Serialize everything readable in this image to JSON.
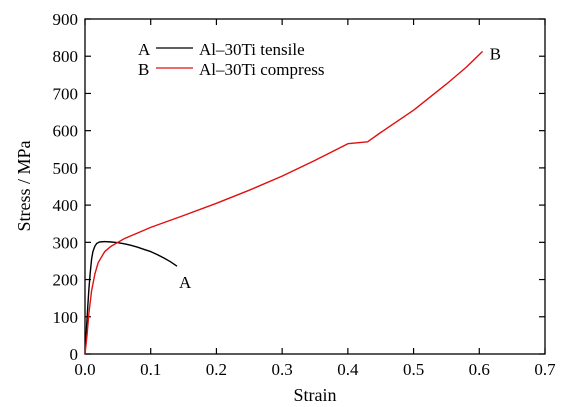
{
  "chart_data": {
    "type": "line",
    "title": "",
    "xlabel": "Strain",
    "ylabel": "Stress / MPa",
    "xlim": [
      0.0,
      0.7
    ],
    "ylim": [
      0,
      900
    ],
    "x_ticks": [
      0.0,
      0.1,
      0.2,
      0.3,
      0.4,
      0.5,
      0.6,
      0.7
    ],
    "x_tick_labels": [
      "0.0",
      "0.1",
      "0.2",
      "0.3",
      "0.4",
      "0.5",
      "0.6",
      "0.7"
    ],
    "y_ticks": [
      0,
      100,
      200,
      300,
      400,
      500,
      600,
      700,
      800,
      900
    ],
    "y_tick_labels": [
      "0",
      "100",
      "200",
      "300",
      "400",
      "500",
      "600",
      "700",
      "800",
      "900"
    ],
    "grid": false,
    "legend_position": "top-left",
    "series": [
      {
        "key": "A",
        "name": "Al–30Ti tensile",
        "end_label": "A",
        "color": "#000000",
        "x": [
          0.0,
          0.002,
          0.004,
          0.006,
          0.008,
          0.01,
          0.012,
          0.015,
          0.018,
          0.022,
          0.03,
          0.04,
          0.05,
          0.06,
          0.07,
          0.08,
          0.09,
          0.1,
          0.11,
          0.12,
          0.13,
          0.14
        ],
        "y": [
          0,
          60,
          120,
          175,
          220,
          255,
          275,
          290,
          297,
          301,
          302,
          301,
          299,
          296,
          292,
          287,
          281,
          275,
          267,
          258,
          248,
          236
        ]
      },
      {
        "key": "B",
        "name": "Al–30Ti compress",
        "end_label": "B",
        "color": "#e01010",
        "x": [
          0.0,
          0.003,
          0.006,
          0.01,
          0.015,
          0.02,
          0.03,
          0.04,
          0.05,
          0.06,
          0.08,
          0.1,
          0.15,
          0.2,
          0.25,
          0.3,
          0.35,
          0.4,
          0.43,
          0.45,
          0.5,
          0.55,
          0.58,
          0.605
        ],
        "y": [
          0,
          50,
          110,
          170,
          215,
          245,
          275,
          290,
          300,
          310,
          325,
          340,
          372,
          405,
          440,
          478,
          520,
          565,
          570,
          595,
          655,
          725,
          770,
          813
        ]
      }
    ]
  }
}
